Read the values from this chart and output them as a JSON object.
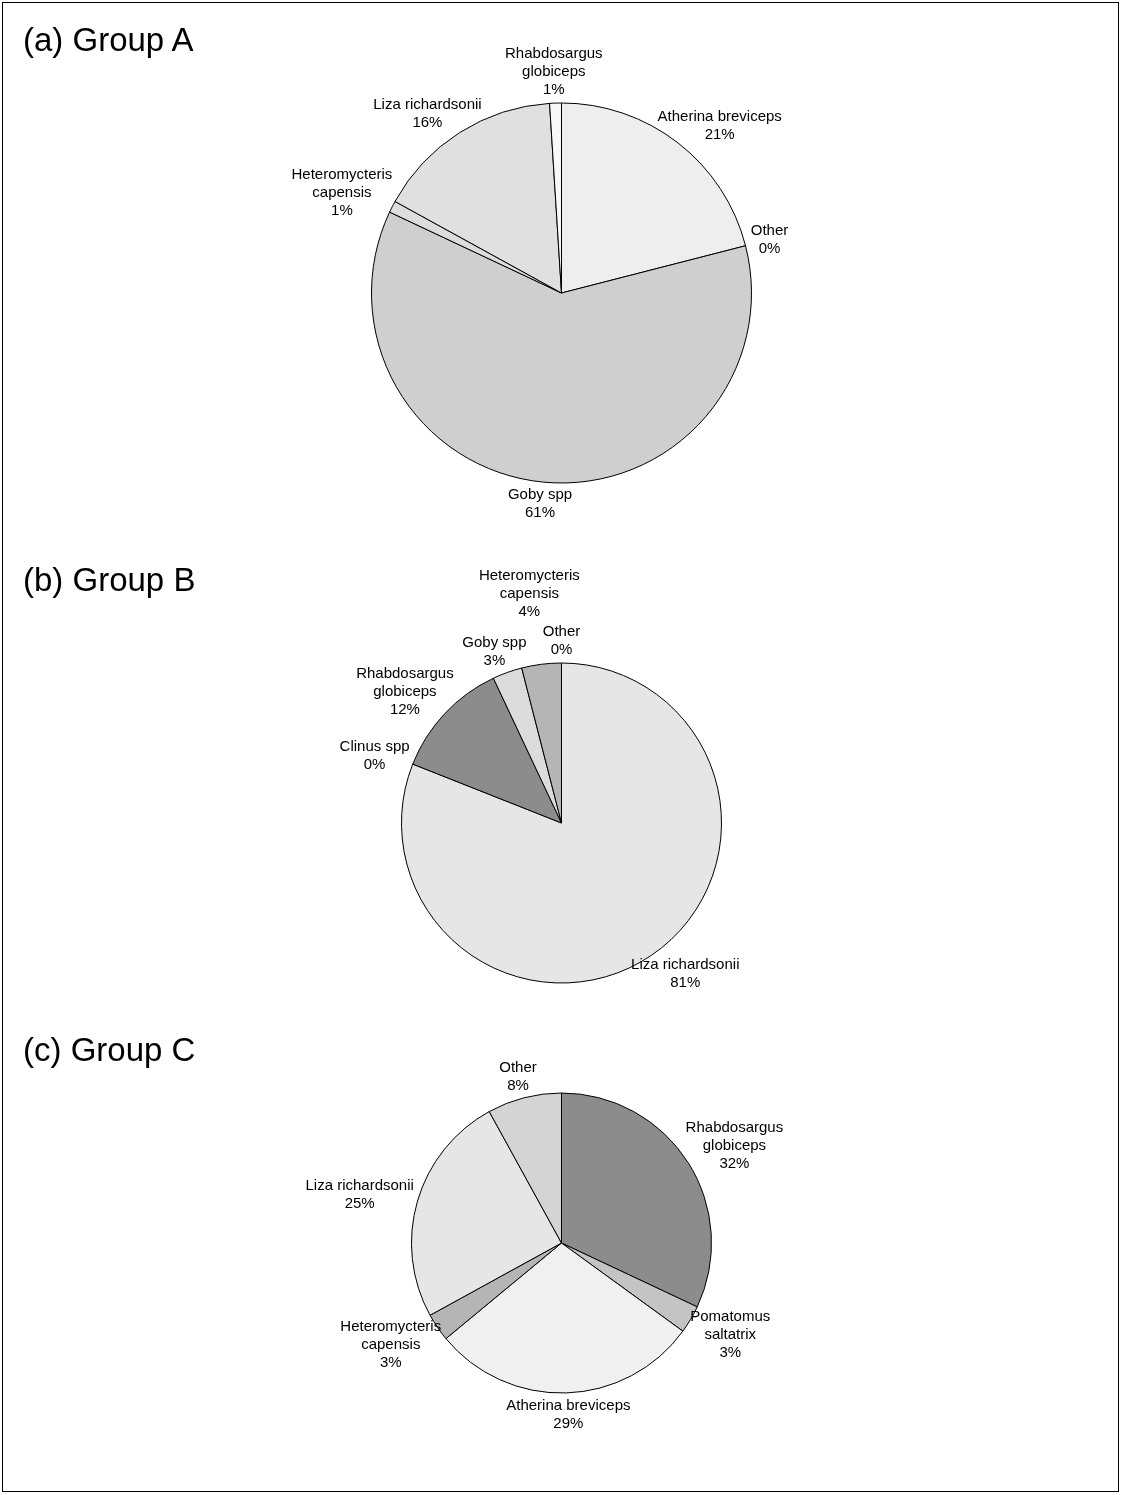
{
  "chart_data": [
    {
      "type": "pie",
      "title": "(a) Group A",
      "categories": [
        "Atherina breviceps",
        "Other",
        "Goby spp",
        "Heteromycteris capensis",
        "Liza richardsonii",
        "Rhabdosargus globiceps"
      ],
      "values": [
        21,
        0,
        61,
        1,
        16,
        1
      ],
      "value_labels": [
        "21%",
        "0%",
        "61%",
        "1%",
        "16%",
        "1%"
      ],
      "colors": [
        "#eeeeee",
        "#ffffff",
        "#cfcfcf",
        "#dddddd",
        "#e0e0e0",
        "#f8f8f8"
      ],
      "legend": false
    },
    {
      "type": "pie",
      "title": "(b) Group B",
      "categories": [
        "Other",
        "Liza richardsonii",
        "Clinus spp",
        "Rhabdosargus globiceps",
        "Goby spp",
        "Heteromycteris capensis"
      ],
      "values": [
        0,
        81,
        0,
        12,
        3,
        4
      ],
      "value_labels": [
        "0%",
        "81%",
        "0%",
        "12%",
        "3%",
        "4%"
      ],
      "colors": [
        "#ffffff",
        "#e6e6e6",
        "#d9d9d9",
        "#8c8c8c",
        "#dcdcdc",
        "#b5b5b5"
      ],
      "legend": false
    },
    {
      "type": "pie",
      "title": "(c) Group C",
      "categories": [
        "Rhabdosargus globiceps",
        "Pomatomus saltatrix",
        "Atherina breviceps",
        "Heteromycteris capensis",
        "Liza richardsonii",
        "Other"
      ],
      "values": [
        32,
        3,
        29,
        3,
        25,
        8
      ],
      "value_labels": [
        "32%",
        "3%",
        "29%",
        "3%",
        "25%",
        "8%"
      ],
      "colors": [
        "#8c8c8c",
        "#c4c4c4",
        "#f0f0f0",
        "#b5b5b5",
        "#e6e6e6",
        "#d4d4d4"
      ],
      "legend": false
    }
  ]
}
